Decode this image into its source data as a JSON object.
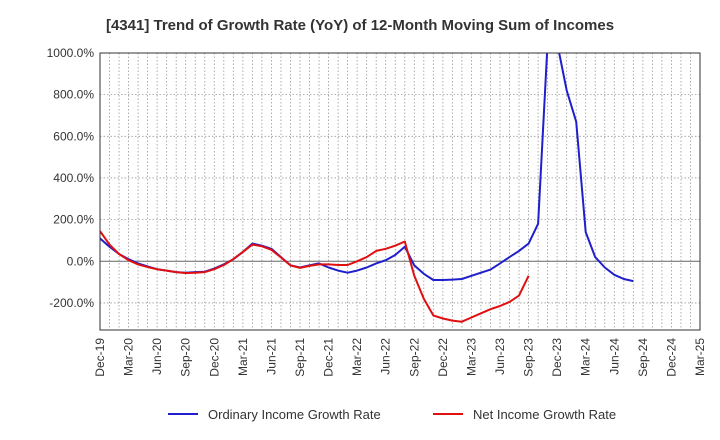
{
  "chart_data": {
    "type": "line",
    "title": "[4341]  Trend of Growth Rate (YoY) of 12-Month Moving Sum of Incomes",
    "xlabel": "",
    "ylabel": "",
    "ylim": [
      -330,
      1000
    ],
    "y_ticks": [
      1000,
      800,
      600,
      400,
      200,
      0,
      -200
    ],
    "y_tick_labels": [
      "1000.0%",
      "800.0%",
      "600.0%",
      "400.0%",
      "200.0%",
      "0.0%",
      "-200.0%"
    ],
    "x_tick_labels": [
      "Dec-19",
      "Mar-20",
      "Jun-20",
      "Sep-20",
      "Dec-20",
      "Mar-21",
      "Jun-21",
      "Sep-21",
      "Dec-21",
      "Mar-22",
      "Jun-22",
      "Sep-22",
      "Dec-22",
      "Mar-23",
      "Jun-23",
      "Sep-23",
      "Dec-23",
      "Mar-24",
      "Jun-24",
      "Sep-24",
      "Dec-24",
      "Mar-25"
    ],
    "grid": true,
    "legend_position": "bottom",
    "series": [
      {
        "name": "Ordinary Income Growth Rate",
        "color": "#1f1fcc",
        "values": [
          110,
          70,
          35,
          10,
          -10,
          -25,
          -38,
          -45,
          -52,
          -55,
          -52,
          -50,
          -35,
          -15,
          10,
          45,
          85,
          75,
          60,
          20,
          -20,
          -30,
          -20,
          -10,
          -30,
          -45,
          -55,
          -45,
          -30,
          -10,
          5,
          30,
          70,
          -20,
          -60,
          -90,
          -90,
          -88,
          -85,
          -70,
          -55,
          -40,
          -10,
          20,
          50,
          85,
          180,
          1050,
          1050,
          820,
          670,
          140,
          20,
          -30,
          -65,
          -85,
          -95
        ]
      },
      {
        "name": "Net Income Growth Rate",
        "color": "#e01010",
        "values": [
          145,
          80,
          35,
          5,
          -15,
          -28,
          -38,
          -45,
          -52,
          -57,
          -55,
          -52,
          -38,
          -18,
          10,
          45,
          80,
          72,
          55,
          18,
          -20,
          -32,
          -22,
          -15,
          -15,
          -18,
          -18,
          0,
          20,
          50,
          60,
          75,
          95,
          -70,
          -180,
          -260,
          -275,
          -285,
          -290,
          -270,
          -250,
          -230,
          -215,
          -195,
          -165,
          -70
        ]
      }
    ]
  }
}
